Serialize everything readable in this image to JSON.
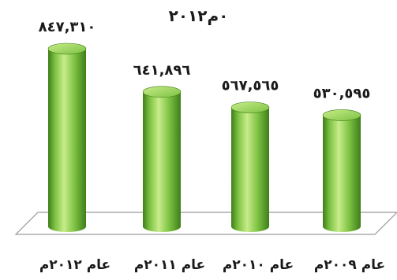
{
  "chart_data": {
    "type": "bar",
    "title": "٠م٢٠١٢",
    "categories": [
      "عام ٢٠١٢م",
      "عام ٢٠١١م",
      "عام ٢٠١٠م",
      "عام ٢٠٠٩م"
    ],
    "value_labels": [
      "٨٤٧,٣١٠",
      "٦٤١,٨٩٦",
      "٥٦٧,٥٦٥",
      "٥٣٠,٥٩٥"
    ],
    "values": [
      847310,
      641896,
      567565,
      530595
    ],
    "ylim": [
      0,
      950000
    ],
    "xlabel": "",
    "ylabel": "",
    "grid": false,
    "bar_color": "#7cc242",
    "bar_highlight": "#c8ec8a",
    "bar_shadow": "#3f7d1a"
  }
}
